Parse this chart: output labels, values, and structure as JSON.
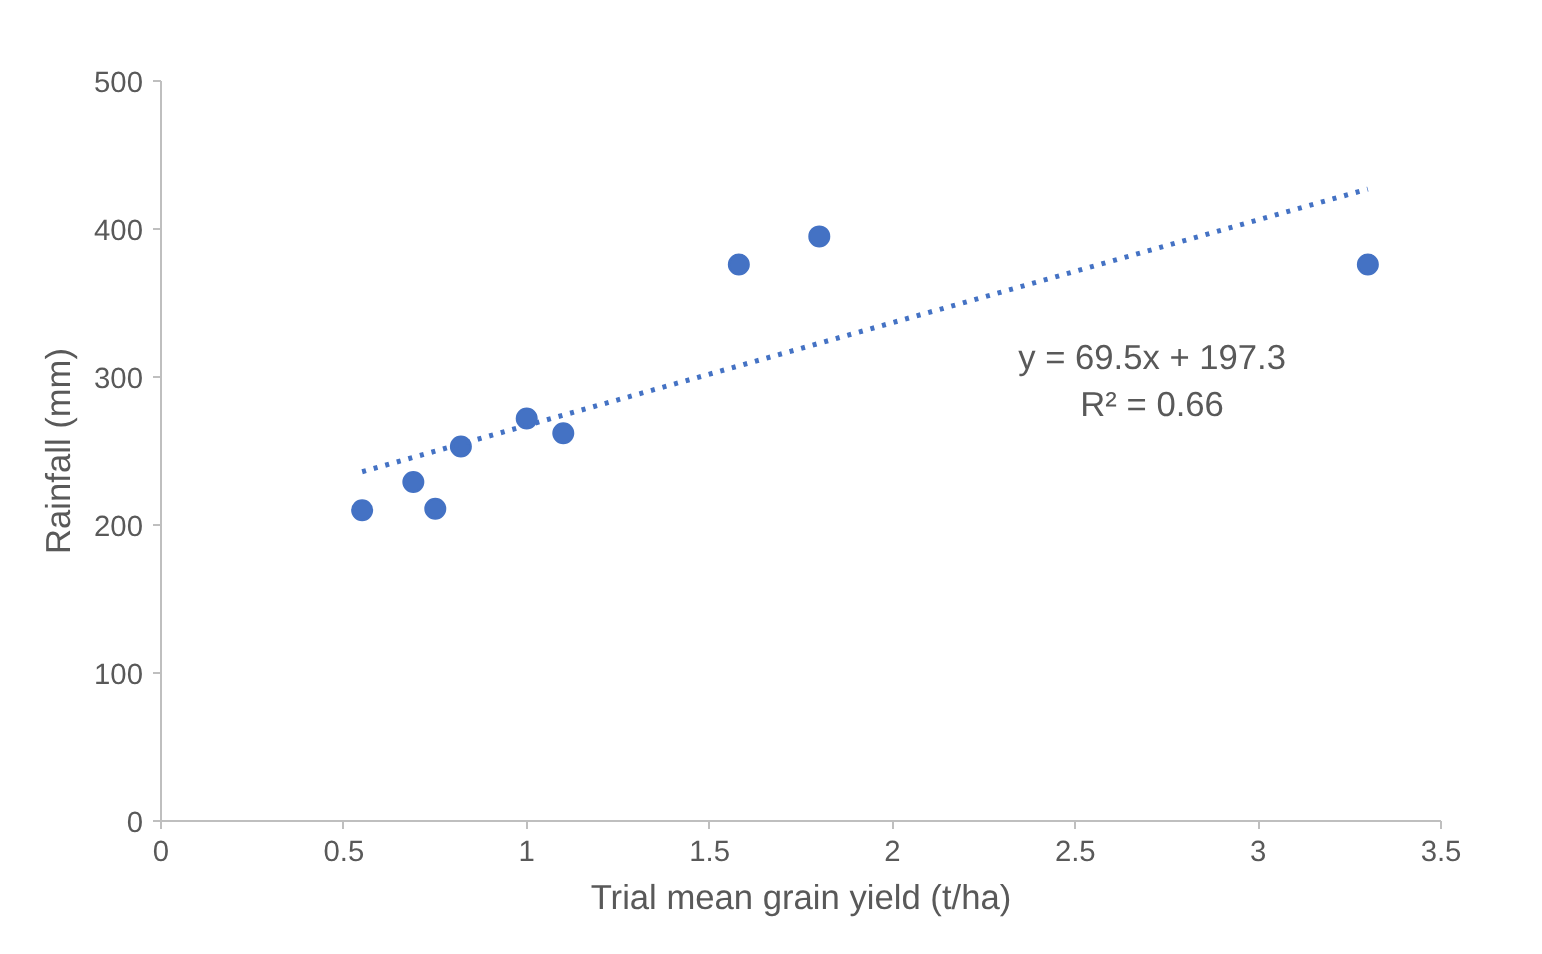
{
  "chart_data": {
    "type": "scatter",
    "xlabel": "Trial mean grain yield (t/ha)",
    "ylabel": "Rainfall (mm)",
    "xlim": [
      0,
      3.5
    ],
    "xticks": [
      0,
      0.5,
      1,
      1.5,
      2,
      2.5,
      3,
      3.5
    ],
    "ylim": [
      0,
      500
    ],
    "yticks": [
      0,
      100,
      200,
      300,
      400,
      500
    ],
    "grid": false,
    "marker": "circle",
    "series": [
      {
        "color": "#4472c4",
        "x": [
          0.55,
          0.69,
          0.75,
          0.82,
          1.0,
          1.1,
          1.58,
          1.8,
          3.3
        ],
        "values": [
          210,
          229,
          211,
          253,
          272,
          262,
          376,
          395,
          376
        ]
      },
      {
        "type": "line",
        "color": "#4472c4",
        "line_style": "dotted",
        "marker": "none",
        "x": [
          0.55,
          3.3
        ],
        "values": [
          236,
          427
        ]
      }
    ],
    "annotations": [
      "y = 69.5x + 197.3",
      "R² = 0.66"
    ]
  }
}
